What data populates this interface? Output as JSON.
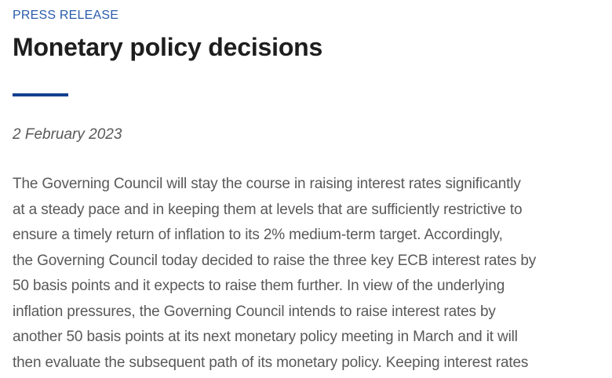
{
  "page": {
    "kicker": "PRESS RELEASE",
    "title": "Monetary policy decisions",
    "date": "2 February 2023",
    "body_lines": [
      "The Governing Council will stay the course in raising interest rates significantly",
      "at a steady pace and in keeping them at levels that are sufficiently restrictive to",
      "ensure a timely return of inflation to its 2% medium-term target. Accordingly,",
      "the Governing Council today decided to raise the three key ECB interest rates by",
      "50 basis points and it expects to raise them further. In view of the underlying",
      "inflation pressures, the Governing Council intends to raise interest rates by",
      "another 50 basis points at its next monetary policy meeting in March and it will",
      "then evaluate the subsequent path of its monetary policy. Keeping interest rates"
    ]
  },
  "colors": {
    "kicker_blue": "#2a5cad",
    "divider_blue": "#12418f",
    "heading_text": "#1e1e1e",
    "body_gray": "#595959"
  }
}
